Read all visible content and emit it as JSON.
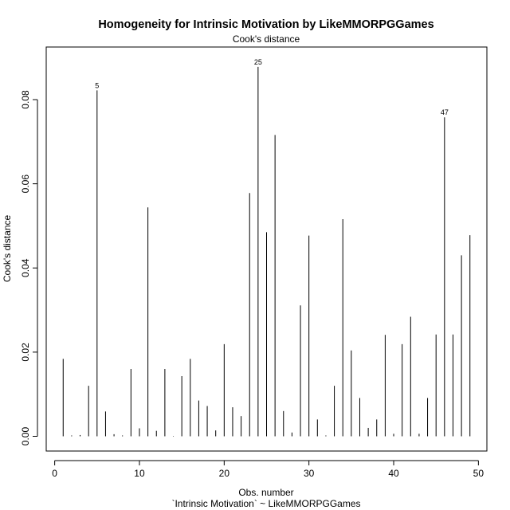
{
  "chart_data": {
    "type": "bar",
    "title": "Homogeneity for Intrinsic Motivation by LikeMMORPGGames",
    "subtitle": "Cook's distance",
    "xlabel": "Obs. number",
    "xlabel2": "`Intrinsic Motivation` ~ LikeMMORPGGames",
    "ylabel": "Cook's distance",
    "xlim": [
      -1,
      51
    ],
    "ylim": [
      -0.0035,
      0.0925
    ],
    "x_ticks": [
      0,
      10,
      20,
      30,
      40,
      50
    ],
    "x_tick_labels": [
      "0",
      "10",
      "20",
      "30",
      "40",
      "50"
    ],
    "y_ticks": [
      0.0,
      0.02,
      0.04,
      0.06,
      0.08
    ],
    "y_tick_labels": [
      "0.00",
      "0.02",
      "0.04",
      "0.06",
      "0.08"
    ],
    "grid": false,
    "x": [
      1,
      2,
      3,
      4,
      5,
      6,
      7,
      8,
      9,
      10,
      11,
      12,
      13,
      14,
      15,
      16,
      17,
      18,
      19,
      20,
      21,
      22,
      23,
      24,
      25,
      26,
      27,
      28,
      29,
      30,
      31,
      32,
      33,
      34,
      35,
      36,
      37,
      38,
      39,
      40,
      41,
      42,
      43,
      44,
      45,
      46,
      47,
      48,
      49
    ],
    "values": [
      0.0184,
      0.0002,
      0.0003,
      0.012,
      0.0822,
      0.0059,
      0.0005,
      0.0002,
      0.016,
      0.0019,
      0.0544,
      0.0013,
      0.016,
      0.0001,
      0.0143,
      0.0184,
      0.0085,
      0.0072,
      0.0014,
      0.0219,
      0.0069,
      0.0048,
      0.0578,
      0.0878,
      0.0485,
      0.0716,
      0.006,
      0.0009,
      0.0311,
      0.0477,
      0.004,
      0.0002,
      0.012,
      0.0516,
      0.0204,
      0.0091,
      0.002,
      0.004,
      0.0241,
      0.0006,
      0.0219,
      0.0284,
      0.0006,
      0.0091,
      0.0242,
      0.0758,
      0.0242,
      0.043,
      0.0478
    ],
    "annotations": [
      {
        "x": 5,
        "text": "5"
      },
      {
        "x": 24,
        "text": "25"
      },
      {
        "x": 46,
        "text": "47"
      }
    ]
  }
}
